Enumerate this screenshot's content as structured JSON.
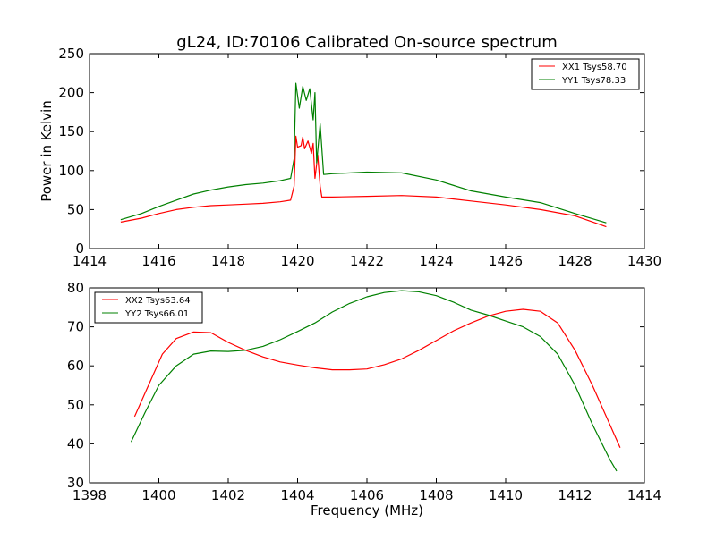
{
  "title": "gL24, ID:70106 Calibrated On-source spectrum",
  "chart_data": [
    {
      "type": "line",
      "ylabel": "Power in Kelvin",
      "xlabel": "",
      "xlim": [
        1414,
        1430
      ],
      "ylim": [
        0,
        250
      ],
      "xticks": [
        "1414",
        "1416",
        "1418",
        "1420",
        "1422",
        "1424",
        "1426",
        "1428",
        "1430"
      ],
      "yticks": [
        "0",
        "50",
        "100",
        "150",
        "200",
        "250"
      ],
      "legend_position": "top-right",
      "series": [
        {
          "name": "XX1 Tsys58.70",
          "color": "#ff0000",
          "points": [
            [
              1414.9,
              34
            ],
            [
              1415.5,
              39
            ],
            [
              1416,
              45
            ],
            [
              1416.5,
              50
            ],
            [
              1417,
              53
            ],
            [
              1417.5,
              55
            ],
            [
              1418,
              56
            ],
            [
              1418.5,
              57
            ],
            [
              1419,
              58
            ],
            [
              1419.5,
              60
            ],
            [
              1419.8,
              62
            ],
            [
              1419.9,
              80
            ],
            [
              1419.95,
              144
            ],
            [
              1420.0,
              130
            ],
            [
              1420.1,
              132
            ],
            [
              1420.15,
              143
            ],
            [
              1420.2,
              128
            ],
            [
              1420.3,
              138
            ],
            [
              1420.4,
              122
            ],
            [
              1420.45,
              135
            ],
            [
              1420.5,
              90
            ],
            [
              1420.58,
              120
            ],
            [
              1420.65,
              80
            ],
            [
              1420.7,
              66
            ],
            [
              1421,
              66
            ],
            [
              1422,
              67
            ],
            [
              1423,
              68
            ],
            [
              1424,
              66
            ],
            [
              1425,
              61
            ],
            [
              1426,
              56
            ],
            [
              1427,
              50
            ],
            [
              1428,
              42
            ],
            [
              1428.9,
              28
            ]
          ]
        },
        {
          "name": "YY1 Tsys78.33",
          "color": "#008000",
          "points": [
            [
              1414.9,
              37
            ],
            [
              1415.5,
              45
            ],
            [
              1416,
              54
            ],
            [
              1416.5,
              62
            ],
            [
              1417,
              70
            ],
            [
              1417.5,
              75
            ],
            [
              1418,
              79
            ],
            [
              1418.5,
              82
            ],
            [
              1419,
              84
            ],
            [
              1419.5,
              87
            ],
            [
              1419.8,
              90
            ],
            [
              1419.9,
              115
            ],
            [
              1419.95,
              212
            ],
            [
              1420.05,
              180
            ],
            [
              1420.15,
              208
            ],
            [
              1420.25,
              190
            ],
            [
              1420.35,
              205
            ],
            [
              1420.45,
              165
            ],
            [
              1420.5,
              200
            ],
            [
              1420.55,
              110
            ],
            [
              1420.65,
              160
            ],
            [
              1420.75,
              95
            ],
            [
              1421,
              96
            ],
            [
              1422,
              98
            ],
            [
              1423,
              97
            ],
            [
              1424,
              88
            ],
            [
              1425,
              74
            ],
            [
              1426,
              66
            ],
            [
              1427,
              59
            ],
            [
              1428,
              45
            ],
            [
              1428.9,
              33
            ]
          ]
        }
      ]
    },
    {
      "type": "line",
      "xlabel": "Frequency (MHz)",
      "ylabel": "",
      "xlim": [
        1398,
        1414
      ],
      "ylim": [
        30,
        80
      ],
      "xticks": [
        "1398",
        "1400",
        "1402",
        "1404",
        "1406",
        "1408",
        "1410",
        "1412",
        "1414"
      ],
      "yticks": [
        "30",
        "40",
        "50",
        "60",
        "70",
        "80"
      ],
      "legend_position": "top-left",
      "series": [
        {
          "name": "XX2 Tsys63.64",
          "color": "#ff0000",
          "points": [
            [
              1399.3,
              47
            ],
            [
              1399.7,
              55
            ],
            [
              1400.1,
              63
            ],
            [
              1400.5,
              67
            ],
            [
              1401,
              68.7
            ],
            [
              1401.5,
              68.5
            ],
            [
              1402,
              66
            ],
            [
              1402.5,
              64
            ],
            [
              1403,
              62.3
            ],
            [
              1403.5,
              61
            ],
            [
              1404,
              60.2
            ],
            [
              1404.5,
              59.5
            ],
            [
              1405,
              59
            ],
            [
              1405.5,
              59
            ],
            [
              1406,
              59.2
            ],
            [
              1406.5,
              60.3
            ],
            [
              1407,
              61.8
            ],
            [
              1407.5,
              64
            ],
            [
              1408,
              66.5
            ],
            [
              1408.5,
              69
            ],
            [
              1409,
              71
            ],
            [
              1409.5,
              72.8
            ],
            [
              1410,
              74
            ],
            [
              1410.5,
              74.5
            ],
            [
              1411,
              74
            ],
            [
              1411.5,
              71
            ],
            [
              1412,
              64
            ],
            [
              1412.5,
              55
            ],
            [
              1413,
              45
            ],
            [
              1413.3,
              39
            ]
          ]
        },
        {
          "name": "YY2 Tsys66.01",
          "color": "#008000",
          "points": [
            [
              1399.2,
              40.5
            ],
            [
              1399.6,
              48
            ],
            [
              1400,
              55
            ],
            [
              1400.5,
              60
            ],
            [
              1401,
              63
            ],
            [
              1401.5,
              63.8
            ],
            [
              1402,
              63.7
            ],
            [
              1402.5,
              64
            ],
            [
              1403,
              65
            ],
            [
              1403.5,
              66.7
            ],
            [
              1404,
              68.8
            ],
            [
              1404.5,
              71
            ],
            [
              1405,
              73.8
            ],
            [
              1405.5,
              76
            ],
            [
              1406,
              77.7
            ],
            [
              1406.5,
              78.8
            ],
            [
              1407,
              79.3
            ],
            [
              1407.5,
              79
            ],
            [
              1408,
              78
            ],
            [
              1408.5,
              76.3
            ],
            [
              1409,
              74.3
            ],
            [
              1409.5,
              73
            ],
            [
              1410,
              71.5
            ],
            [
              1410.5,
              70
            ],
            [
              1411,
              67.5
            ],
            [
              1411.5,
              63
            ],
            [
              1412,
              55
            ],
            [
              1412.5,
              45
            ],
            [
              1413,
              36
            ],
            [
              1413.2,
              33
            ]
          ]
        }
      ]
    }
  ]
}
